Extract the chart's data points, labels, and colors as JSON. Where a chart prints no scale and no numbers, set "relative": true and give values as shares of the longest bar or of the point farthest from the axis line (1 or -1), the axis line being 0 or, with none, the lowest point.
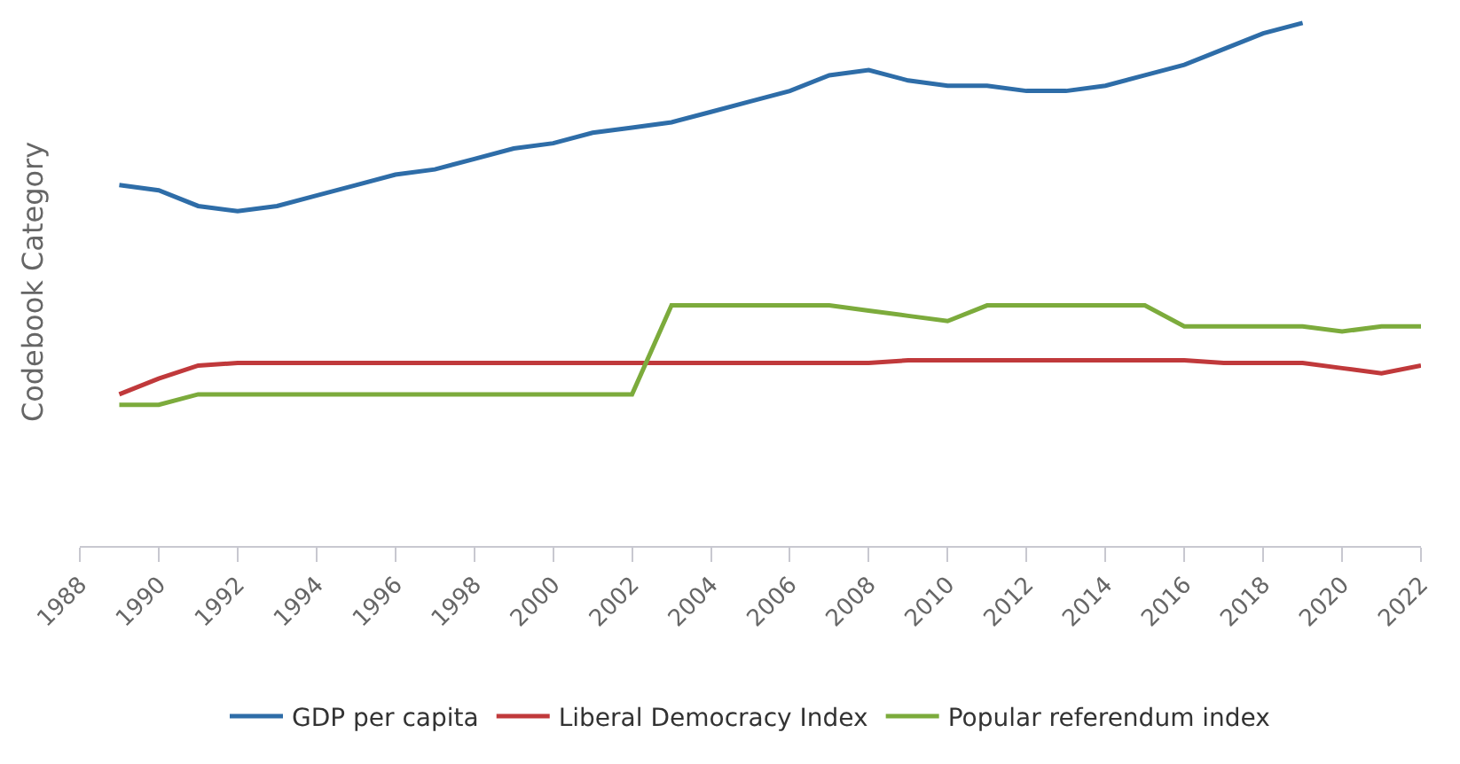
{
  "chart_data": {
    "type": "line",
    "relative": true,
    "ylabel": "Codebook Category",
    "xlim": [
      1988,
      2022
    ],
    "xticks": [
      1988,
      1990,
      1992,
      1994,
      1996,
      1998,
      2000,
      2002,
      2004,
      2006,
      2008,
      2010,
      2012,
      2014,
      2016,
      2018,
      2020,
      2022
    ],
    "legend": "bottom",
    "marker": "none",
    "line_style": "solid",
    "series": [
      {
        "name": "GDP per capita",
        "color": "#2e6da8",
        "x": [
          1989,
          1990,
          1991,
          1992,
          1993,
          1994,
          1995,
          1996,
          1997,
          1998,
          1999,
          2000,
          2001,
          2002,
          2003,
          2004,
          2005,
          2006,
          2007,
          2008,
          2009,
          2010,
          2011,
          2012,
          2013,
          2014,
          2015,
          2016,
          2017,
          2018,
          2019
        ],
        "values": [
          0.69,
          0.68,
          0.65,
          0.64,
          0.65,
          0.67,
          0.69,
          0.71,
          0.72,
          0.74,
          0.76,
          0.77,
          0.79,
          0.8,
          0.81,
          0.83,
          0.85,
          0.87,
          0.9,
          0.91,
          0.89,
          0.88,
          0.88,
          0.87,
          0.87,
          0.88,
          0.9,
          0.92,
          0.95,
          0.98,
          1
        ]
      },
      {
        "name": "Liberal Democracy Index",
        "color": "#c0393b",
        "x": [
          1989,
          1990,
          1991,
          1992,
          1993,
          1994,
          1995,
          1996,
          1997,
          1998,
          1999,
          2000,
          2001,
          2002,
          2003,
          2004,
          2005,
          2006,
          2007,
          2008,
          2009,
          2010,
          2011,
          2012,
          2013,
          2014,
          2015,
          2016,
          2017,
          2018,
          2019,
          2020,
          2021,
          2022
        ],
        "values": [
          0.29,
          0.32,
          0.345,
          0.35,
          0.35,
          0.35,
          0.35,
          0.35,
          0.35,
          0.35,
          0.35,
          0.35,
          0.35,
          0.35,
          0.35,
          0.35,
          0.35,
          0.35,
          0.35,
          0.35,
          0.355,
          0.355,
          0.355,
          0.355,
          0.355,
          0.355,
          0.355,
          0.355,
          0.35,
          0.35,
          0.35,
          0.34,
          0.33,
          0.345
        ]
      },
      {
        "name": "Popular referendum index",
        "color": "#7cab3c",
        "x": [
          1989,
          1990,
          1991,
          1992,
          1993,
          1994,
          1995,
          1996,
          1997,
          1998,
          1999,
          2000,
          2001,
          2002,
          2003,
          2004,
          2005,
          2006,
          2007,
          2008,
          2009,
          2010,
          2011,
          2012,
          2013,
          2014,
          2015,
          2016,
          2017,
          2018,
          2019,
          2020,
          2021,
          2022
        ],
        "values": [
          0.27,
          0.27,
          0.29,
          0.29,
          0.29,
          0.29,
          0.29,
          0.29,
          0.29,
          0.29,
          0.29,
          0.29,
          0.29,
          0.29,
          0.46,
          0.46,
          0.46,
          0.46,
          0.46,
          0.45,
          0.44,
          0.43,
          0.46,
          0.46,
          0.46,
          0.46,
          0.46,
          0.42,
          0.42,
          0.42,
          0.42,
          0.41,
          0.42,
          0.42
        ]
      }
    ]
  }
}
